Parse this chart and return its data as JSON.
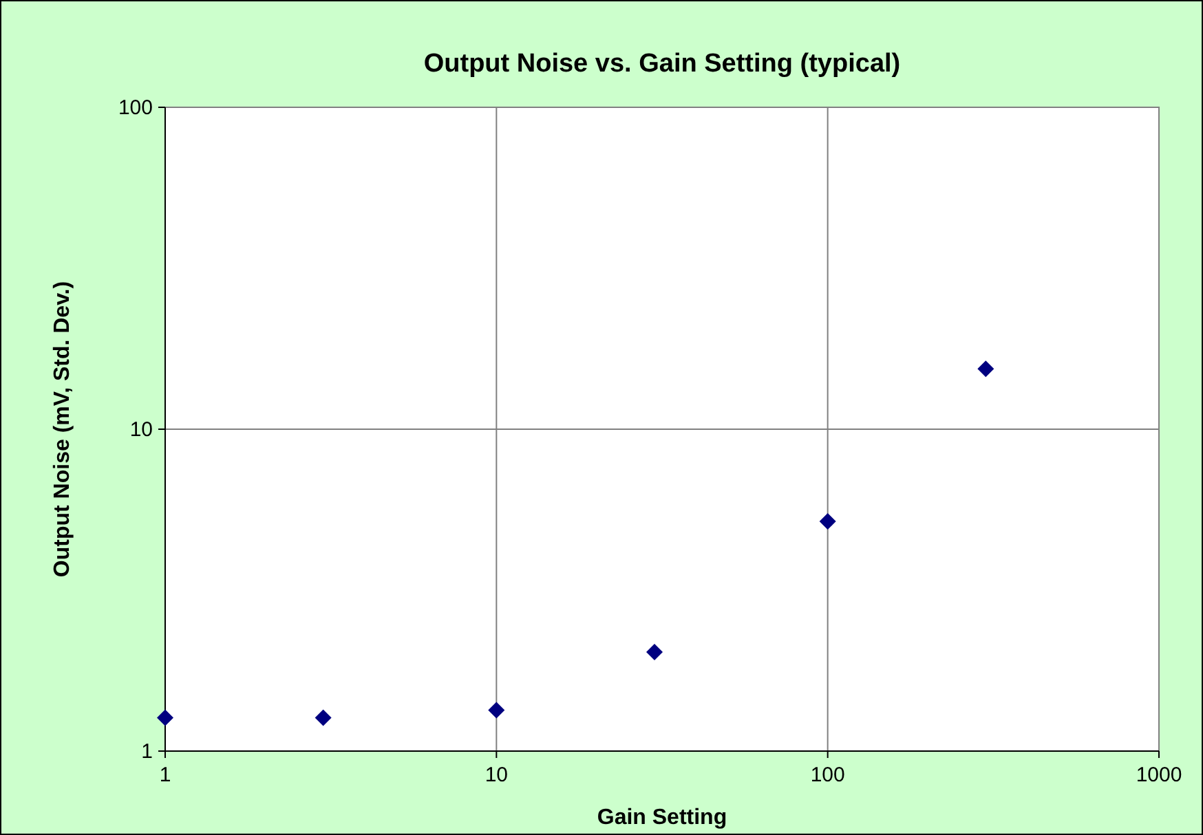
{
  "chart_data": {
    "type": "scatter",
    "title": "Output Noise vs. Gain Setting (typical)",
    "xlabel": "Gain Setting",
    "ylabel": "Output Noise (mV, Std. Dev.)",
    "x": [
      1,
      3,
      10,
      30,
      100,
      300
    ],
    "series": [
      {
        "color": "#000080",
        "values": [
          1.27,
          1.27,
          1.34,
          2.03,
          5.17,
          15.4
        ]
      }
    ],
    "log": "xy",
    "xlim": [
      1,
      1000
    ],
    "ylim": [
      1,
      100
    ],
    "xticks": [
      1,
      10,
      100,
      1000
    ],
    "yticks": [
      1,
      10,
      100
    ],
    "grid": true,
    "marker": "diamond"
  }
}
